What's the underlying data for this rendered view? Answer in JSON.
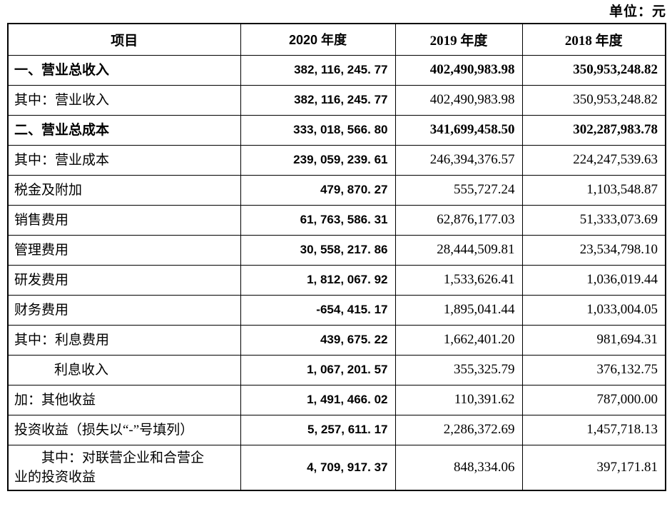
{
  "unit_label": "单位：元",
  "table": {
    "headers": {
      "item": "项目",
      "y2020": "2020 年度",
      "y2019": "2019 年度",
      "y2018": "2018 年度"
    },
    "rows": [
      {
        "label": "一、营业总收入",
        "y2020": "382, 116, 245. 77",
        "y2019": "402,490,983.98",
        "y2018": "350,953,248.82"
      },
      {
        "label": "其中：营业收入",
        "y2020": "382, 116, 245. 77",
        "y2019": "402,490,983.98",
        "y2018": "350,953,248.82"
      },
      {
        "label": "二、营业总成本",
        "y2020": "333, 018, 566. 80",
        "y2019": "341,699,458.50",
        "y2018": "302,287,983.78"
      },
      {
        "label": "其中：营业成本",
        "y2020": "239, 059, 239. 61",
        "y2019": "246,394,376.57",
        "y2018": "224,247,539.63"
      },
      {
        "label": "税金及附加",
        "y2020": "479, 870. 27",
        "y2019": "555,727.24",
        "y2018": "1,103,548.87"
      },
      {
        "label": "销售费用",
        "y2020": "61, 763, 586. 31",
        "y2019": "62,876,177.03",
        "y2018": "51,333,073.69"
      },
      {
        "label": "管理费用",
        "y2020": "30, 558, 217. 86",
        "y2019": "28,444,509.81",
        "y2018": "23,534,798.10"
      },
      {
        "label": "研发费用",
        "y2020": "1, 812, 067. 92",
        "y2019": "1,533,626.41",
        "y2018": "1,036,019.44"
      },
      {
        "label": "财务费用",
        "y2020": "-654, 415. 17",
        "y2019": "1,895,041.44",
        "y2018": "1,033,004.05"
      },
      {
        "label": "其中：利息费用",
        "y2020": "439, 675. 22",
        "y2019": "1,662,401.20",
        "y2018": "981,694.31"
      },
      {
        "label": "利息收入",
        "y2020": "1, 067, 201. 57",
        "y2019": "355,325.79",
        "y2018": "376,132.75"
      },
      {
        "label": "加：其他收益",
        "y2020": "1, 491, 466. 02",
        "y2019": "110,391.62",
        "y2018": "787,000.00"
      },
      {
        "label": "投资收益（损失以“-”号填列）",
        "y2020": "5, 257, 611. 17",
        "y2019": "2,286,372.69",
        "y2018": "1,457,718.13"
      },
      {
        "label": "其中：对联营企业和合营企业的投资收益",
        "y2020": "4, 709, 917. 37",
        "y2019": "848,334.06",
        "y2018": "397,171.81"
      }
    ]
  }
}
